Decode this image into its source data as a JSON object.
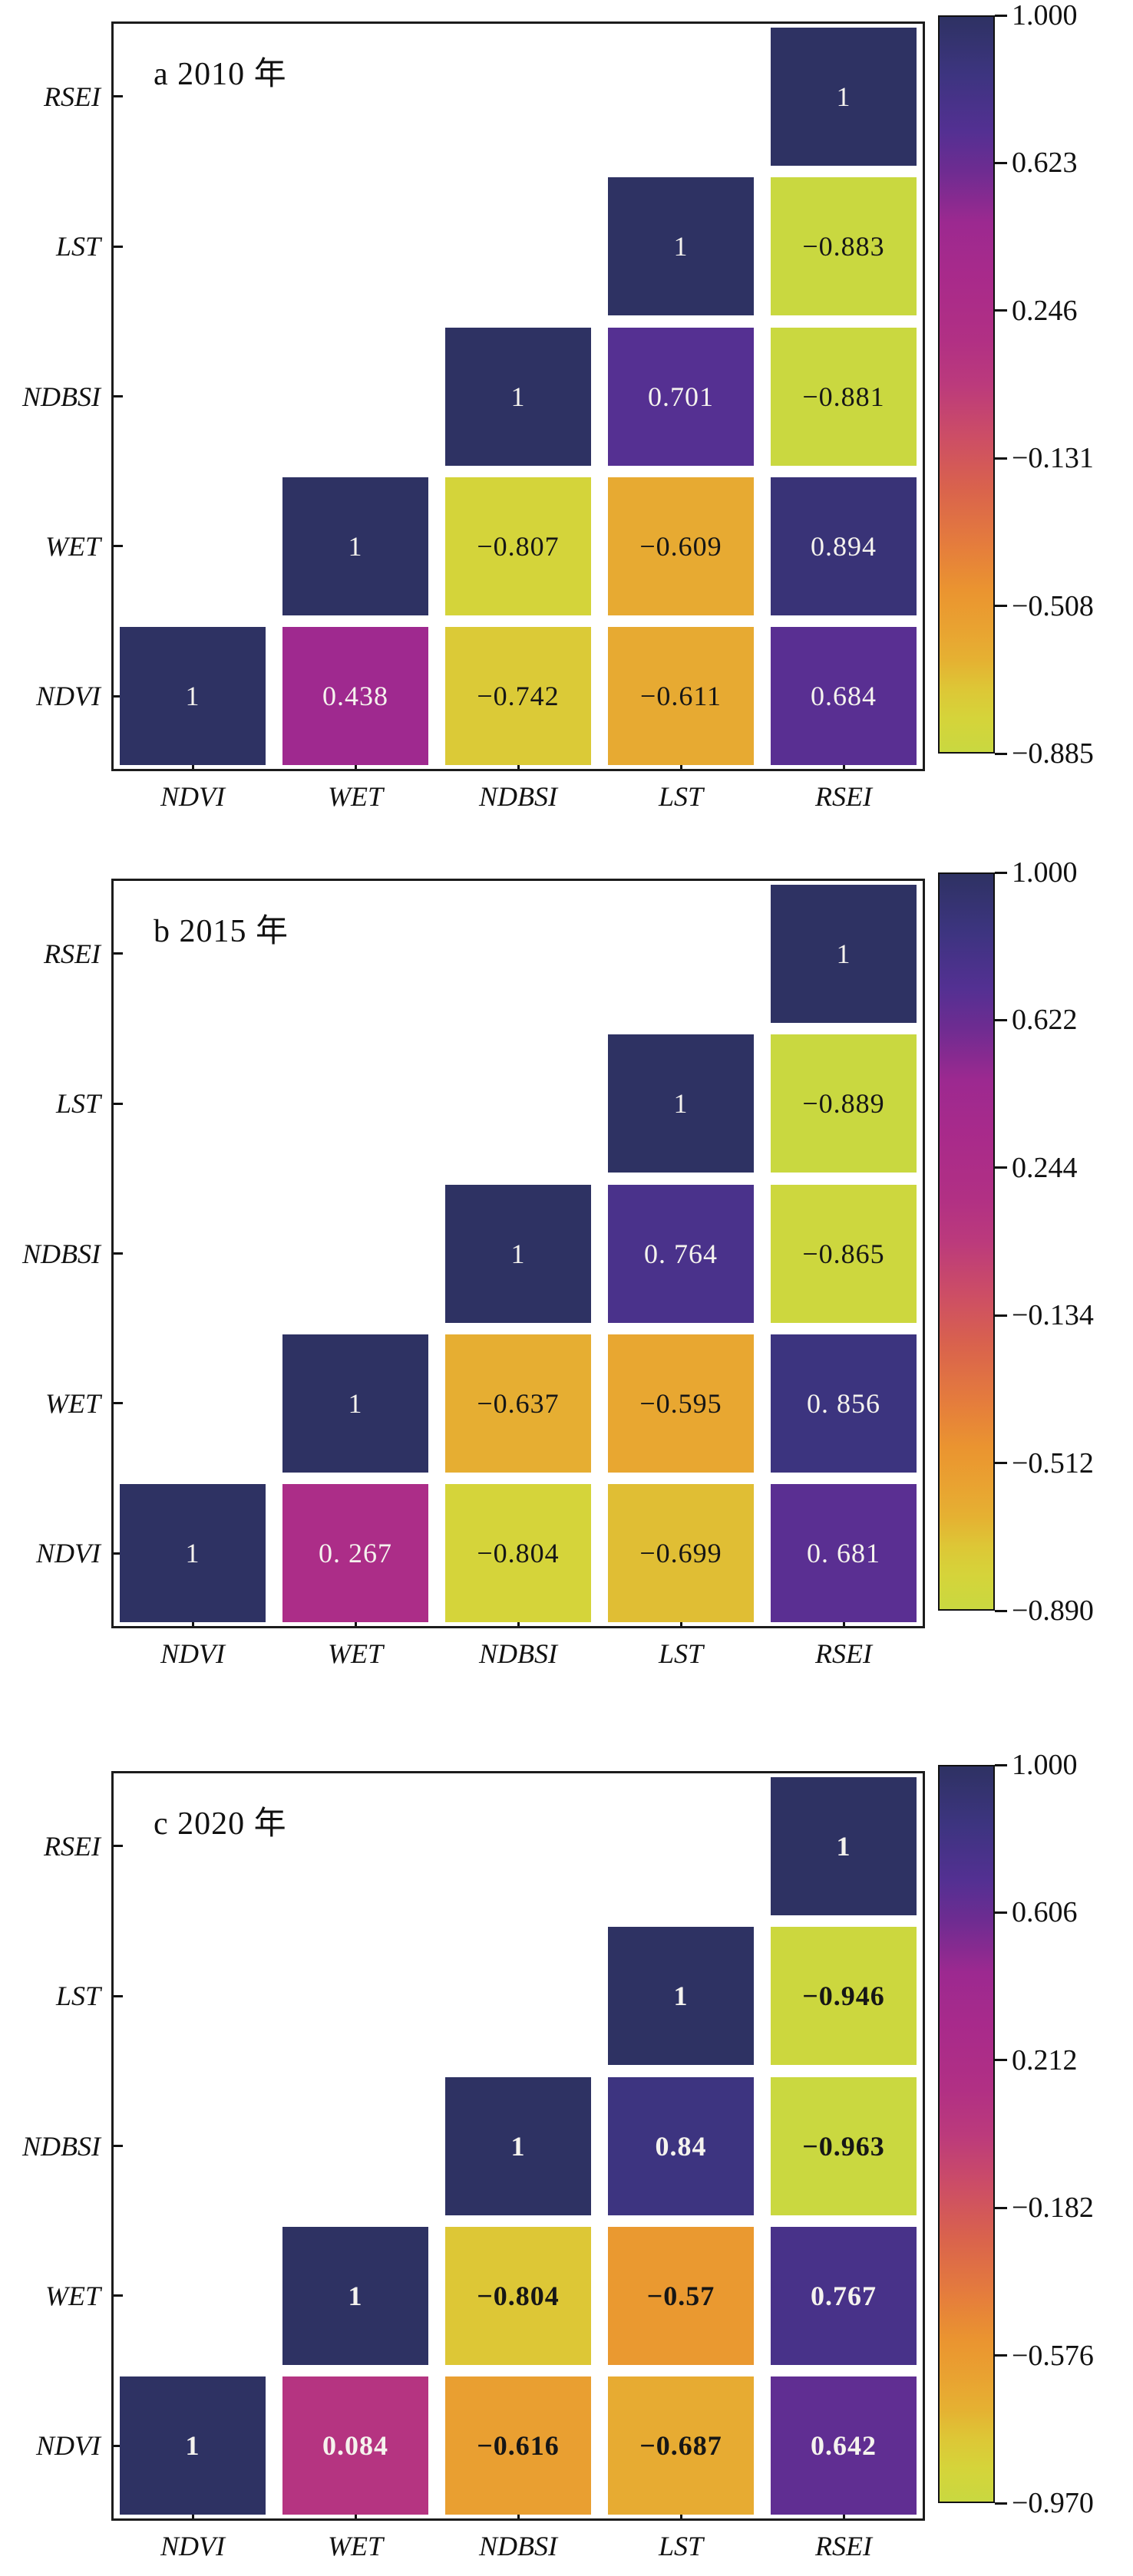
{
  "figure": {
    "background": "#ffffff"
  },
  "chart_data": [
    {
      "type": "heatmap",
      "panel_label": "a",
      "title": "a 2010 年",
      "x_categories": [
        "NDVI",
        "WET",
        "NDBSI",
        "LST",
        "RSEI"
      ],
      "y_categories": [
        "RSEI",
        "LST",
        "NDBSI",
        "WET",
        "NDVI"
      ],
      "matrix_display": [
        [
          null,
          null,
          null,
          null,
          "1"
        ],
        [
          null,
          null,
          null,
          "1",
          "−0.883"
        ],
        [
          null,
          null,
          "1",
          "0.701",
          "−0.881"
        ],
        [
          null,
          "1",
          "−0.807",
          "−0.609",
          "0.894"
        ],
        [
          "1",
          "0.438",
          "−0.742",
          "−0.611",
          "0.684"
        ]
      ],
      "colorbar_ticks": [
        "1.000",
        "0.623",
        "0.246",
        "−0.131",
        "−0.508",
        "−0.885"
      ],
      "vmin": -0.885,
      "vmax": 1.0,
      "bold_values": false
    },
    {
      "type": "heatmap",
      "panel_label": "b",
      "title": "b 2015 年",
      "x_categories": [
        "NDVI",
        "WET",
        "NDBSI",
        "LST",
        "RSEI"
      ],
      "y_categories": [
        "RSEI",
        "LST",
        "NDBSI",
        "WET",
        "NDVI"
      ],
      "matrix_display": [
        [
          null,
          null,
          null,
          null,
          "1"
        ],
        [
          null,
          null,
          null,
          "1",
          "−0.889"
        ],
        [
          null,
          null,
          "1",
          "0. 764",
          "−0.865"
        ],
        [
          null,
          "1",
          "−0.637",
          "−0.595",
          "0. 856"
        ],
        [
          "1",
          "0. 267",
          "−0.804",
          "−0.699",
          "0. 681"
        ]
      ],
      "colorbar_ticks": [
        "1.000",
        "0.622",
        "0.244",
        "−0.134",
        "−0.512",
        "−0.890"
      ],
      "vmin": -0.89,
      "vmax": 1.0,
      "bold_values": false
    },
    {
      "type": "heatmap",
      "panel_label": "c",
      "title": "c 2020 年",
      "x_categories": [
        "NDVI",
        "WET",
        "NDBSI",
        "LST",
        "RSEI"
      ],
      "y_categories": [
        "RSEI",
        "LST",
        "NDBSI",
        "WET",
        "NDVI"
      ],
      "matrix_display": [
        [
          null,
          null,
          null,
          null,
          "1"
        ],
        [
          null,
          null,
          null,
          "1",
          "−0.946"
        ],
        [
          null,
          null,
          "1",
          "0.84",
          "−0.963"
        ],
        [
          null,
          "1",
          "−0.804",
          "−0.57",
          "0.767"
        ],
        [
          "1",
          "0.084",
          "−0.616",
          "−0.687",
          "0.642"
        ]
      ],
      "colorbar_ticks": [
        "1.000",
        "0.606",
        "0.212",
        "−0.182",
        "−0.576",
        "−0.970"
      ],
      "vmin": -0.97,
      "vmax": 1.0,
      "bold_values": true
    }
  ],
  "style": {
    "axis_color": "#1c1c1c",
    "cell_text_light": "#f5f3ee",
    "cell_text_dark": "#161616",
    "colormap_stops": [
      [
        0.0,
        "#c9d840"
      ],
      [
        0.045,
        "#d5d43a"
      ],
      [
        0.085,
        "#ddc736"
      ],
      [
        0.125,
        "#e5b132"
      ],
      [
        0.17,
        "#e9a231"
      ],
      [
        0.22,
        "#ea9430"
      ],
      [
        0.28,
        "#e57d3c"
      ],
      [
        0.36,
        "#d9624d"
      ],
      [
        0.43,
        "#cc4d66"
      ],
      [
        0.5,
        "#bb3a7c"
      ],
      [
        0.56,
        "#b13084"
      ],
      [
        0.65,
        "#a82a8b"
      ],
      [
        0.72,
        "#9c2990"
      ],
      [
        0.79,
        "#6e2c91"
      ],
      [
        0.845,
        "#533092"
      ],
      [
        0.92,
        "#3d3480"
      ],
      [
        1.0,
        "#2e3263"
      ]
    ]
  }
}
